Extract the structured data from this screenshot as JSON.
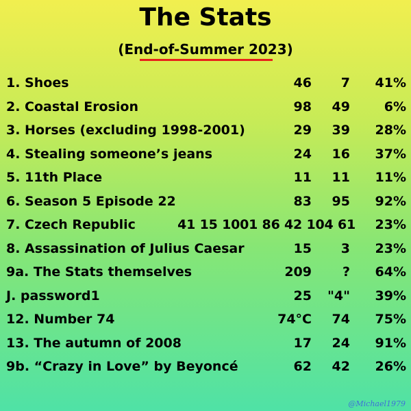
{
  "title": "The Stats",
  "subtitle": "(End-of-Summer 2023)",
  "accent_color": "#e8201a",
  "watermark": "@Michael1979",
  "rows": [
    {
      "label": "1. Shoes",
      "c1": "46",
      "c2": "7",
      "c3": "41%"
    },
    {
      "label": "2. Coastal Erosion",
      "c1": "98",
      "c2": "49",
      "c3": "6%"
    },
    {
      "label": "3. Horses (excluding 1998-2001)",
      "c1": "29",
      "c2": "39",
      "c3": "28%"
    },
    {
      "label": "4. Stealing someone’s jeans",
      "c1": "24",
      "c2": "16",
      "c3": "37%"
    },
    {
      "label": "5. 11th Place",
      "c1": "11",
      "c2": "11",
      "c3": "11%"
    },
    {
      "label": "6. Season 5 Episode 22",
      "c1": "83",
      "c2": "95",
      "c3": "92%"
    },
    {
      "label": "7. Czech Republic",
      "inline": "41 15 1001 86 42 104 61",
      "c3": "23%"
    },
    {
      "label": "8. Assassination of Julius Caesar",
      "c1": "15",
      "c2": "3",
      "c3": "23%"
    },
    {
      "label": "9a. The Stats themselves",
      "c1": "209",
      "c2": "?",
      "c3": "64%"
    },
    {
      "label": "J. password1",
      "c1": "25",
      "c2": "\"4\"",
      "c3": "39%"
    },
    {
      "label": "12. Number 74",
      "c1": "74°C",
      "c2": "74",
      "c3": "75%"
    },
    {
      "label": "13. The autumn of 2008",
      "c1": "17",
      "c2": "24",
      "c3": "91%"
    },
    {
      "label": "9b. “Crazy in Love” by Beyoncé",
      "c1": "62",
      "c2": "42",
      "c3": "26%"
    }
  ]
}
